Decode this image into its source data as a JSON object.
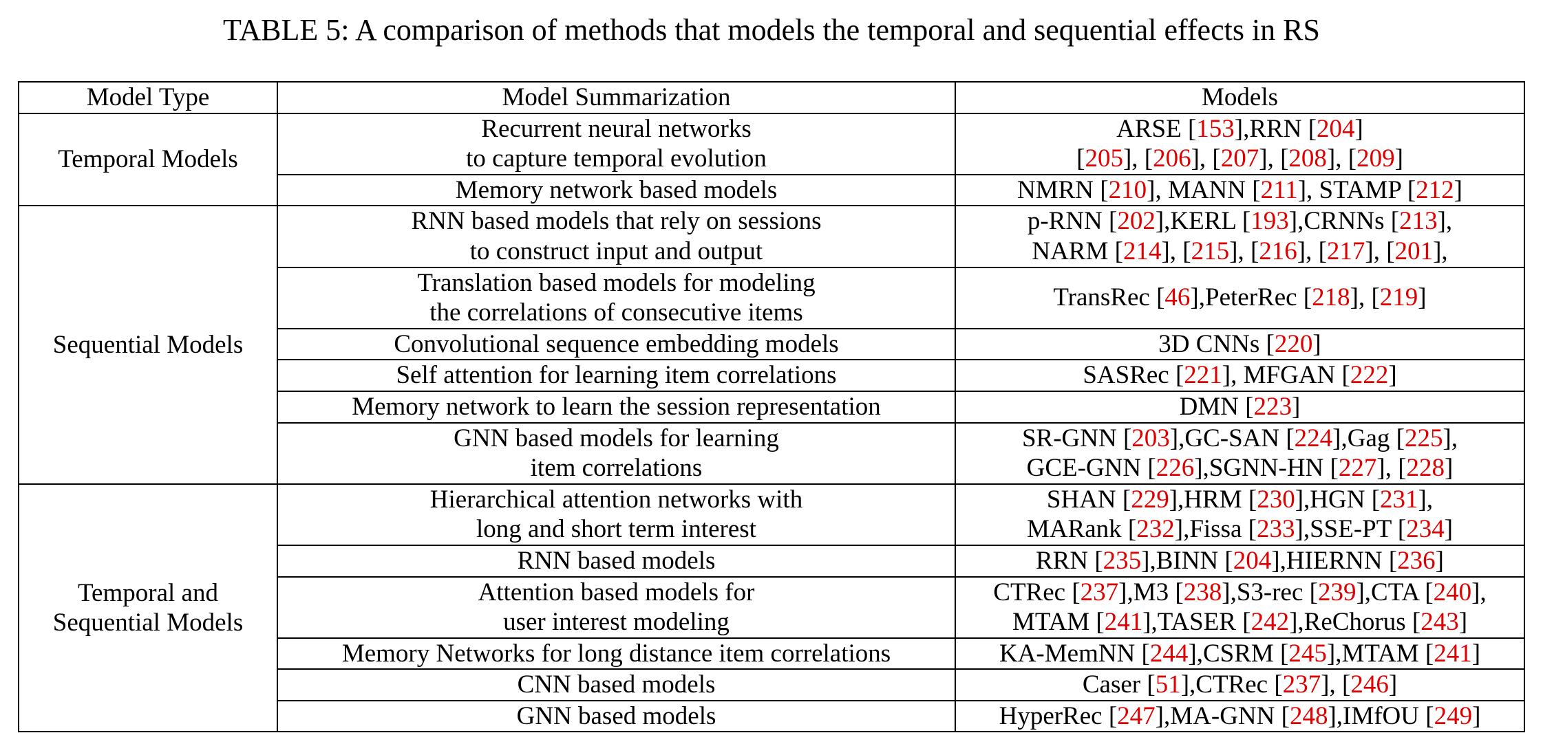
{
  "title": "TABLE 5: A comparison of methods that models the temporal and sequential effects in RS",
  "table": {
    "header": [
      "Model Type",
      "Model Summarization",
      "Models"
    ],
    "groups": [
      {
        "type": [
          "Temporal Models"
        ],
        "rows": [
          {
            "summary": [
              "Recurrent neural networks",
              "to capture temporal evolution"
            ],
            "models": [
              "ARSE [153],RRN [204]",
              "[205], [206], [207], [208], [209]"
            ]
          },
          {
            "summary": [
              "Memory network based models"
            ],
            "models": [
              "NMRN [210], MANN [211], STAMP [212]"
            ]
          }
        ]
      },
      {
        "type": [
          "Sequential Models"
        ],
        "rows": [
          {
            "summary": [
              "RNN based models that rely on sessions",
              "to construct input and output"
            ],
            "models": [
              "p-RNN [202],KERL [193],CRNNs [213],",
              "NARM [214], [215], [216], [217], [201],"
            ]
          },
          {
            "summary": [
              "Translation based models for modeling",
              "the correlations of consecutive items"
            ],
            "models": [
              "TransRec [46],PeterRec [218], [219]"
            ]
          },
          {
            "summary": [
              "Convolutional sequence embedding models"
            ],
            "models": [
              "3D CNNs [220]"
            ]
          },
          {
            "summary": [
              "Self attention for learning item correlations"
            ],
            "models": [
              "SASRec [221], MFGAN [222]"
            ]
          },
          {
            "summary": [
              "Memory network to learn the session representation"
            ],
            "models": [
              "DMN [223]"
            ]
          },
          {
            "summary": [
              "GNN based models for learning",
              "item correlations"
            ],
            "models": [
              "SR-GNN [203],GC-SAN [224],Gag [225],",
              "GCE-GNN [226],SGNN-HN [227], [228]"
            ]
          }
        ]
      },
      {
        "type": [
          "Temporal and",
          "Sequential Models"
        ],
        "rows": [
          {
            "summary": [
              "Hierarchical attention networks with",
              "long and short term interest"
            ],
            "models": [
              "SHAN [229],HRM [230],HGN [231],",
              "MARank [232],Fissa [233],SSE-PT [234]"
            ]
          },
          {
            "summary": [
              "RNN based models"
            ],
            "models": [
              "RRN [235],BINN [204],HIERNN [236]"
            ]
          },
          {
            "summary": [
              "Attention based models for",
              "user interest modeling"
            ],
            "models": [
              "CTRec [237],M3 [238],S3-rec [239],CTA [240],",
              "MTAM [241],TASER [242],ReChorus [243]"
            ]
          },
          {
            "summary": [
              "Memory Networks for long distance item correlations"
            ],
            "models": [
              "KA-MemNN [244],CSRM [245],MTAM [241]"
            ]
          },
          {
            "summary": [
              "CNN based models"
            ],
            "models": [
              "Caser [51],CTRec [237], [246]"
            ]
          },
          {
            "summary": [
              "GNN based models"
            ],
            "models": [
              "HyperRec [247],MA-GNN [248],IMfOU [249]"
            ]
          }
        ]
      }
    ]
  }
}
